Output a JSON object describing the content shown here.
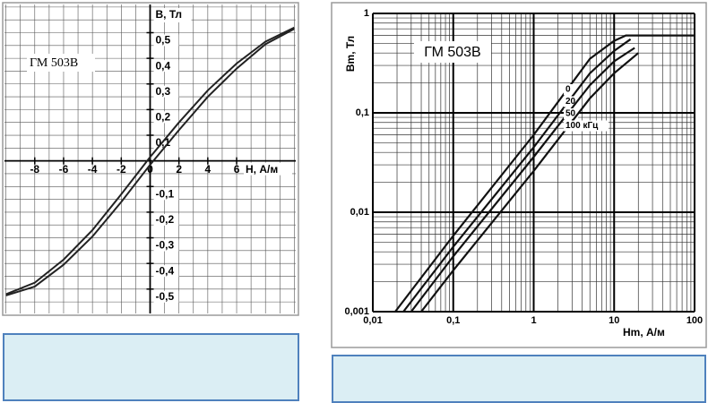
{
  "chart_data": [
    {
      "type": "line",
      "title": "ГМ 503В",
      "xlabel": "H, А/м",
      "ylabel": "B, Тл",
      "x": [
        -10,
        -8,
        -6,
        -4,
        -2,
        0,
        2,
        4,
        6,
        8,
        10
      ],
      "series": [
        {
          "color": "#222222",
          "values": [
            -0.52,
            -0.475,
            -0.385,
            -0.27,
            -0.13,
            0.015,
            0.15,
            0.275,
            0.38,
            0.465,
            0.52
          ]
        },
        {
          "color": "#222222",
          "values": [
            -0.525,
            -0.49,
            -0.405,
            -0.295,
            -0.16,
            -0.015,
            0.12,
            0.25,
            0.36,
            0.455,
            0.515
          ]
        }
      ],
      "xlim": [
        -10.1,
        10.1
      ],
      "ylim": [
        -0.595,
        0.61
      ],
      "xticks": [
        -8,
        -6,
        -4,
        -2,
        0,
        2,
        4,
        6
      ],
      "yticks": [
        {
          "value": 0.5,
          "label": "0,5"
        },
        {
          "value": 0.4,
          "label": "0,4"
        },
        {
          "value": 0.3,
          "label": "0,3"
        },
        {
          "value": 0.2,
          "label": "0,2"
        },
        {
          "value": 0.1,
          "label": "0,1"
        },
        {
          "value": -0.1,
          "label": "-0,1"
        },
        {
          "value": -0.2,
          "label": "-0,2"
        },
        {
          "value": -0.3,
          "label": "-0,3"
        },
        {
          "value": -0.4,
          "label": "-0,4"
        },
        {
          "value": -0.5,
          "label": "-0,5"
        }
      ],
      "grid": true
    },
    {
      "type": "line",
      "title": "ГМ 503В",
      "xlabel": "Hm, А/м",
      "ylabel": "Bm, Тл",
      "log_x": true,
      "log_y": true,
      "series": [
        {
          "name": "0",
          "color": "#111111",
          "x": [
            0.019,
            0.1,
            1,
            5,
            10,
            14,
            20,
            100
          ],
          "values": [
            0.001,
            0.0058,
            0.06,
            0.35,
            0.53,
            0.6,
            0.6,
            0.6
          ]
        },
        {
          "name": "20",
          "color": "#111111",
          "x": [
            0.024,
            0.1,
            1,
            5,
            10,
            16
          ],
          "values": [
            0.001,
            0.0045,
            0.045,
            0.25,
            0.42,
            0.55
          ]
        },
        {
          "name": "50",
          "color": "#111111",
          "x": [
            0.03,
            0.1,
            1,
            5,
            10,
            18
          ],
          "values": [
            0.001,
            0.0036,
            0.036,
            0.19,
            0.33,
            0.45
          ]
        },
        {
          "name": "100 кГц",
          "color": "#111111",
          "x": [
            0.04,
            0.1,
            1,
            5,
            10,
            20
          ],
          "values": [
            0.001,
            0.0026,
            0.026,
            0.14,
            0.25,
            0.4
          ]
        }
      ],
      "xlim": [
        0.01,
        100
      ],
      "ylim": [
        0.001,
        1
      ],
      "xticks": [
        {
          "value": 0.01,
          "label": "0,01"
        },
        {
          "value": 0.1,
          "label": "0,1"
        },
        1,
        10,
        100
      ],
      "yticks": [
        {
          "value": 0.001,
          "label": "0,001"
        },
        {
          "value": 0.01,
          "label": "0,01"
        },
        {
          "value": 0.1,
          "label": "0,1"
        },
        1
      ],
      "grid": true
    }
  ]
}
